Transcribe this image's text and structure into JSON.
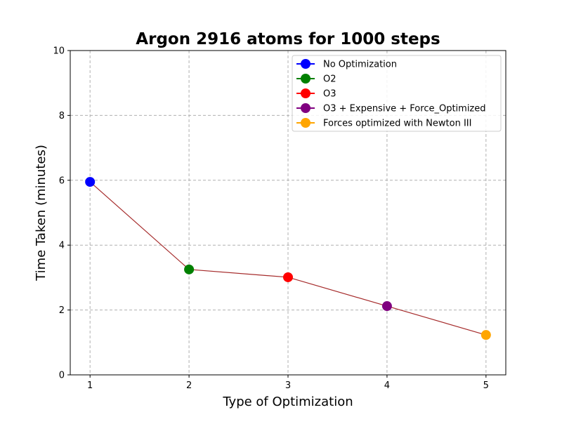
{
  "chart_data": {
    "type": "line",
    "title": "Argon 2916 atoms for 1000 steps",
    "xlabel": "Type of Optimization",
    "ylabel": "Time Taken (minutes)",
    "x": [
      1,
      2,
      3,
      4,
      5
    ],
    "values": [
      5.95,
      3.25,
      3.01,
      2.12,
      1.23
    ],
    "xticks": [
      1,
      2,
      3,
      4,
      5
    ],
    "yticks": [
      0,
      2,
      4,
      6,
      8,
      10
    ],
    "xlim": [
      0.8,
      5.2
    ],
    "ylim": [
      0,
      10
    ],
    "grid": true,
    "line_color": "#a52a2a",
    "points": [
      {
        "name": "No Optimization",
        "x": 1,
        "y": 5.95,
        "color": "#0000ff"
      },
      {
        "name": "O2",
        "x": 2,
        "y": 3.25,
        "color": "#008000"
      },
      {
        "name": "O3",
        "x": 3,
        "y": 3.01,
        "color": "#ff0000"
      },
      {
        "name": "O3 + Expensive + Force_Optimized",
        "x": 4,
        "y": 2.12,
        "color": "#800080"
      },
      {
        "name": "Forces optimized with Newton III",
        "x": 5,
        "y": 1.23,
        "color": "#ffa500"
      }
    ],
    "legend_position": "top-right"
  }
}
